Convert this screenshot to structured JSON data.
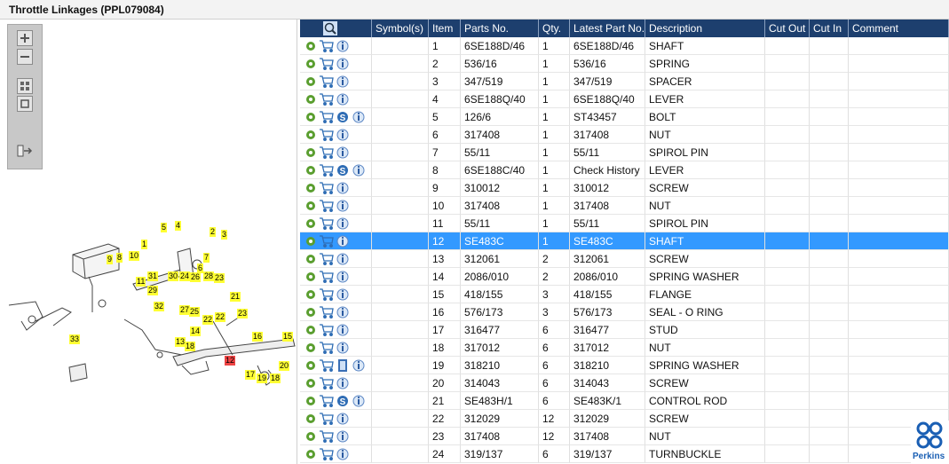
{
  "header": {
    "title": "Throttle Linkages (PPL079084)"
  },
  "table": {
    "columns": [
      "Symbol(s)",
      "Item",
      "Parts No.",
      "Qty.",
      "Latest Part No.",
      "Description",
      "Cut Out",
      "Cut In",
      "Comment"
    ],
    "rows": [
      {
        "item": "1",
        "parts_no": "6SE188D/46",
        "qty": "1",
        "latest": "6SE188D/46",
        "description": "SHAFT"
      },
      {
        "item": "2",
        "parts_no": "536/16",
        "qty": "1",
        "latest": "536/16",
        "description": "SPRING"
      },
      {
        "item": "3",
        "parts_no": "347/519",
        "qty": "1",
        "latest": "347/519",
        "description": "SPACER"
      },
      {
        "item": "4",
        "parts_no": "6SE188Q/40",
        "qty": "1",
        "latest": "6SE188Q/40",
        "description": "LEVER"
      },
      {
        "item": "5",
        "parts_no": "126/6",
        "qty": "1",
        "latest": "ST43457",
        "description": "BOLT",
        "badge": "S"
      },
      {
        "item": "6",
        "parts_no": "317408",
        "qty": "1",
        "latest": "317408",
        "description": "NUT"
      },
      {
        "item": "7",
        "parts_no": "55/11",
        "qty": "1",
        "latest": "55/11",
        "description": "SPIROL PIN"
      },
      {
        "item": "8",
        "parts_no": "6SE188C/40",
        "qty": "1",
        "latest": "Check History",
        "description": "LEVER",
        "badge": "S"
      },
      {
        "item": "9",
        "parts_no": "310012",
        "qty": "1",
        "latest": "310012",
        "description": "SCREW"
      },
      {
        "item": "10",
        "parts_no": "317408",
        "qty": "1",
        "latest": "317408",
        "description": "NUT"
      },
      {
        "item": "11",
        "parts_no": "55/11",
        "qty": "1",
        "latest": "55/11",
        "description": "SPIROL PIN"
      },
      {
        "item": "12",
        "parts_no": "SE483C",
        "qty": "1",
        "latest": "SE483C",
        "description": "SHAFT",
        "selected": true
      },
      {
        "item": "13",
        "parts_no": "312061",
        "qty": "2",
        "latest": "312061",
        "description": "SCREW"
      },
      {
        "item": "14",
        "parts_no": "2086/010",
        "qty": "2",
        "latest": "2086/010",
        "description": "SPRING WASHER"
      },
      {
        "item": "15",
        "parts_no": "418/155",
        "qty": "3",
        "latest": "418/155",
        "description": "FLANGE"
      },
      {
        "item": "16",
        "parts_no": "576/173",
        "qty": "3",
        "latest": "576/173",
        "description": "SEAL - O RING"
      },
      {
        "item": "17",
        "parts_no": "316477",
        "qty": "6",
        "latest": "316477",
        "description": "STUD"
      },
      {
        "item": "18",
        "parts_no": "317012",
        "qty": "6",
        "latest": "317012",
        "description": "NUT"
      },
      {
        "item": "19",
        "parts_no": "318210",
        "qty": "6",
        "latest": "318210",
        "description": "SPRING WASHER",
        "document": true
      },
      {
        "item": "20",
        "parts_no": "314043",
        "qty": "6",
        "latest": "314043",
        "description": "SCREW"
      },
      {
        "item": "21",
        "parts_no": "SE483H/1",
        "qty": "6",
        "latest": "SE483K/1",
        "description": "CONTROL ROD",
        "badge": "S"
      },
      {
        "item": "22",
        "parts_no": "312029",
        "qty": "12",
        "latest": "312029",
        "description": "SCREW"
      },
      {
        "item": "23",
        "parts_no": "317408",
        "qty": "12",
        "latest": "317408",
        "description": "NUT"
      },
      {
        "item": "24",
        "parts_no": "319/137",
        "qty": "6",
        "latest": "319/137",
        "description": "TURNBUCKLE"
      }
    ]
  },
  "diagram": {
    "callouts": [
      "4",
      "5",
      "2",
      "3",
      "1",
      "9",
      "8",
      "10",
      "7",
      "6",
      "31",
      "30",
      "24",
      "26",
      "28",
      "23",
      "11",
      "29",
      "21",
      "32",
      "27",
      "25",
      "22",
      "22",
      "23",
      "14",
      "16",
      "15",
      "13",
      "33",
      "18",
      "12",
      "20",
      "17",
      "19",
      "18"
    ]
  },
  "logo": "Perkins"
}
